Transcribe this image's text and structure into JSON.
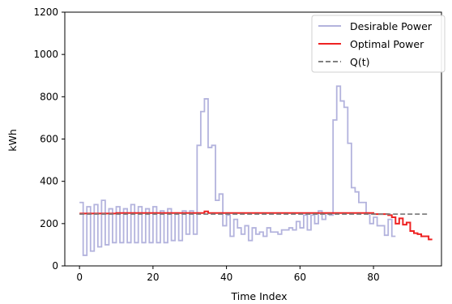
{
  "chart_data": {
    "type": "line",
    "xlabel": "Time Index",
    "ylabel": "kWh",
    "xlim": [
      -4,
      98.5
    ],
    "ylim": [
      0,
      1200
    ],
    "xticks": [
      0,
      20,
      40,
      60,
      80
    ],
    "yticks": [
      0,
      200,
      400,
      600,
      800,
      1000,
      1200
    ],
    "grid": false,
    "legend_placement": "top-right",
    "series": [
      {
        "name": "Desirable Power",
        "color": "#b3b3dd",
        "style": "steps-post",
        "x": [
          0,
          1,
          2,
          3,
          4,
          5,
          6,
          7,
          8,
          9,
          10,
          11,
          12,
          13,
          14,
          15,
          16,
          17,
          18,
          19,
          20,
          21,
          22,
          23,
          24,
          25,
          26,
          27,
          28,
          29,
          30,
          31,
          32,
          33,
          34,
          35,
          36,
          37,
          38,
          39,
          40,
          41,
          42,
          43,
          44,
          45,
          46,
          47,
          48,
          49,
          50,
          51,
          52,
          53,
          54,
          55,
          56,
          57,
          58,
          59,
          60,
          61,
          62,
          63,
          64,
          65,
          66,
          67,
          68,
          69,
          70,
          71,
          72,
          73,
          74,
          75,
          76,
          77,
          78,
          79,
          80,
          81,
          82,
          83,
          84,
          85
        ],
        "y": [
          300,
          50,
          280,
          70,
          290,
          90,
          310,
          100,
          270,
          110,
          280,
          110,
          270,
          110,
          290,
          110,
          280,
          110,
          270,
          110,
          280,
          110,
          260,
          110,
          270,
          120,
          250,
          120,
          260,
          150,
          260,
          150,
          570,
          730,
          790,
          560,
          570,
          310,
          340,
          190,
          240,
          140,
          220,
          180,
          150,
          190,
          120,
          180,
          150,
          160,
          140,
          180,
          160,
          160,
          150,
          170,
          170,
          180,
          170,
          210,
          180,
          240,
          170,
          240,
          200,
          260,
          220,
          250,
          240,
          690,
          850,
          780,
          750,
          580,
          370,
          350,
          300,
          300,
          250,
          200,
          230,
          190,
          190,
          145,
          220,
          140
        ]
      },
      {
        "name": "Optimal Power",
        "color": "#ee2222",
        "style": "steps-post",
        "x": [
          0,
          10,
          20,
          30,
          33,
          34,
          35,
          40,
          50,
          60,
          70,
          80,
          84,
          85,
          86,
          87,
          88,
          89,
          90,
          91,
          92,
          93,
          94,
          95
        ],
        "y": [
          248,
          250,
          250,
          250,
          250,
          258,
          250,
          250,
          250,
          250,
          250,
          245,
          240,
          230,
          200,
          225,
          195,
          205,
          165,
          155,
          150,
          140,
          140,
          125
        ]
      },
      {
        "name": "Q(t)",
        "color": "#808080",
        "style": "dashed",
        "x": [
          0,
          95
        ],
        "y": [
          245,
          245
        ]
      }
    ]
  }
}
